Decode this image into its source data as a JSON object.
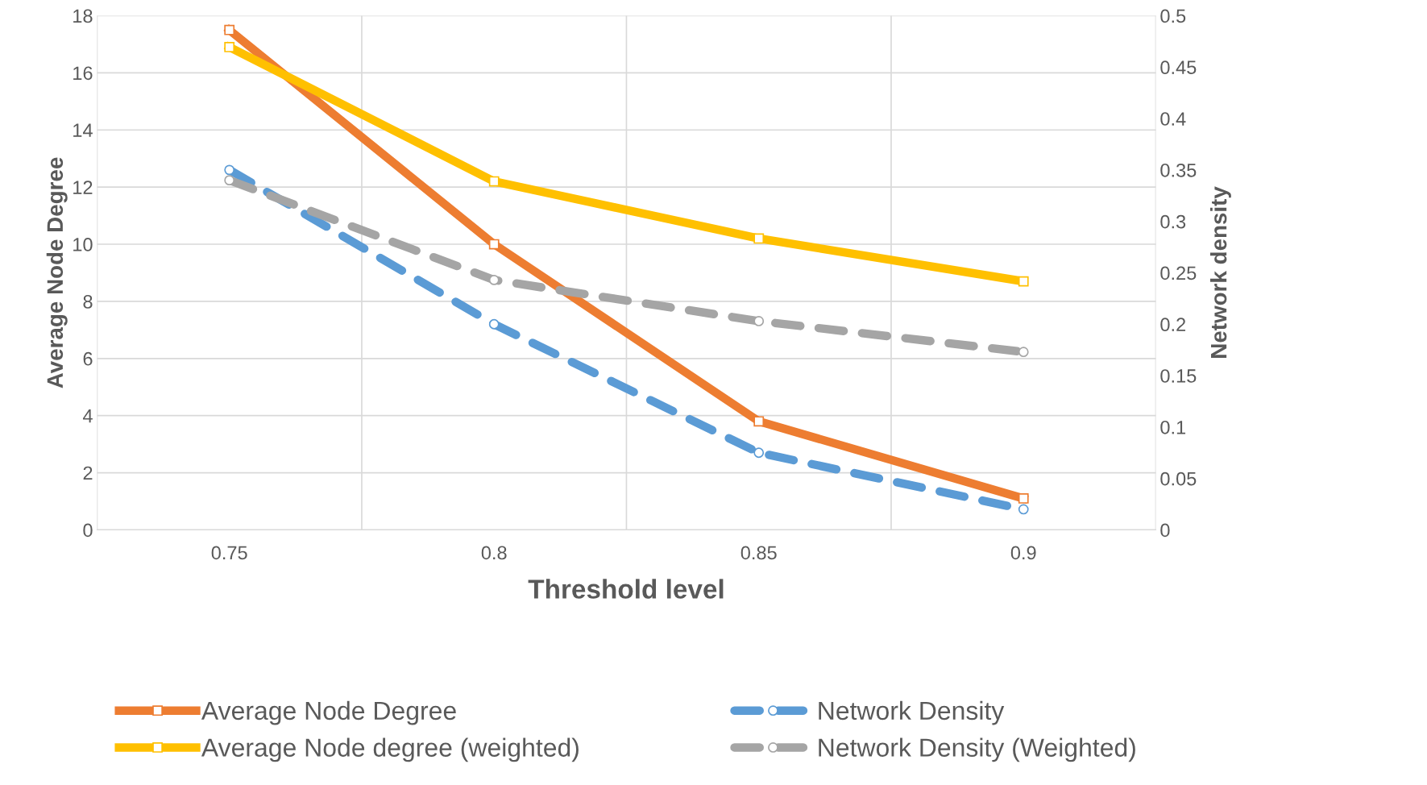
{
  "chart_data": {
    "type": "line",
    "xlabel": "Threshold level",
    "ylabel": "Average Node Degree",
    "y2label": "Network density",
    "categories": [
      "0.75",
      "0.8",
      "0.85",
      "0.9"
    ],
    "series": [
      {
        "name": "Average Node Degree",
        "color": "#ed7d31",
        "values": [
          17.5,
          10,
          3.8,
          1.1
        ],
        "marker": "square",
        "line_style": "solid"
      },
      {
        "name": "Average Node degree (weighted)",
        "color": "#ffc000",
        "values": [
          16.9,
          12.2,
          10.2,
          8.7
        ],
        "marker": "square",
        "line_style": "solid"
      },
      {
        "name": "Network Density",
        "color": "#5b9bd5",
        "values": [
          0.35,
          0.2,
          0.075,
          0.02
        ],
        "axis": "y2",
        "marker": "circle",
        "line_style": "dashed"
      },
      {
        "name": "Network Density (Weighted)",
        "color": "#a5a5a5",
        "values": [
          0.34,
          0.243,
          0.203,
          0.173
        ],
        "axis": "y2",
        "marker": "circle",
        "line_style": "dashed"
      }
    ],
    "ylim": [
      0,
      18
    ],
    "yticks": [
      0,
      2,
      4,
      6,
      8,
      10,
      12,
      14,
      16,
      18
    ],
    "y2lim": [
      0,
      0.5
    ],
    "y2ticks": [
      0,
      0.05,
      0.1,
      0.15,
      0.2,
      0.25,
      0.3,
      0.35,
      0.4,
      0.45,
      0.5
    ],
    "grid": true,
    "legend": "bottom"
  }
}
